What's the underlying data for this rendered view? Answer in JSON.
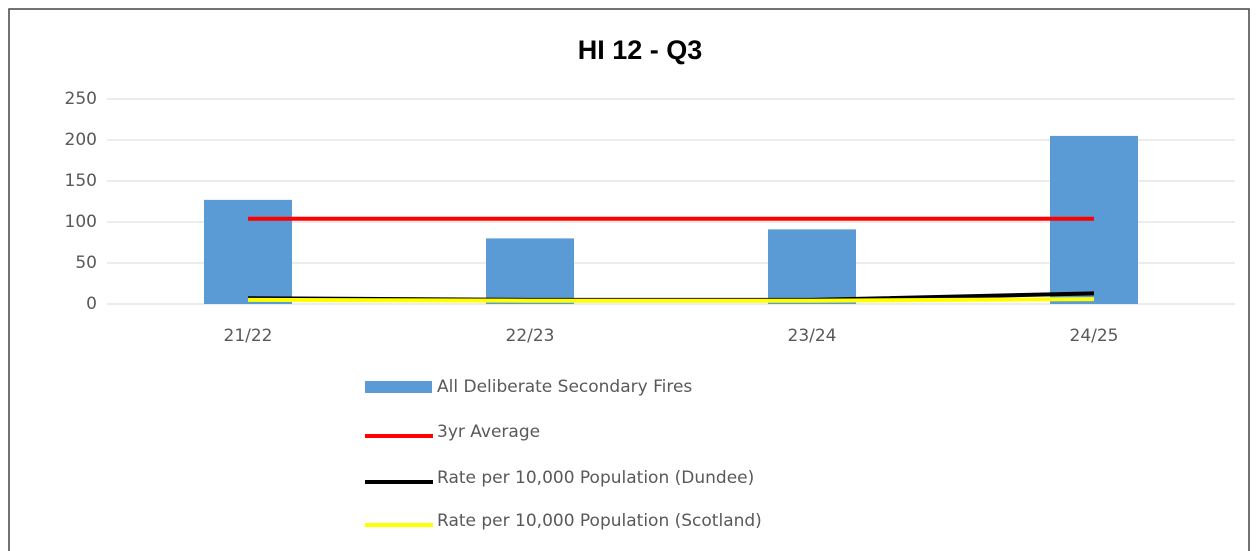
{
  "chart_data": {
    "type": "bar",
    "title": "HI 12 - Q3",
    "categories": [
      "21/22",
      "22/23",
      "23/24",
      "24/25"
    ],
    "series": [
      {
        "name": "All Deliberate Secondary Fires",
        "type": "bar",
        "color": "#5b9bd5",
        "values": [
          127,
          80,
          91,
          205
        ]
      },
      {
        "name": "3yr Average",
        "type": "line",
        "color": "#ff0000",
        "values": [
          104,
          104,
          104,
          104
        ]
      },
      {
        "name": "Rate per 10,000 Population (Dundee)",
        "type": "line",
        "color": "#000000",
        "values": [
          7,
          5,
          5,
          13
        ]
      },
      {
        "name": "Rate per 10,000 Population (Scotland)",
        "type": "line",
        "color": "#ffff00",
        "values": [
          5,
          4,
          4,
          6
        ]
      }
    ],
    "ylim": [
      0,
      250
    ],
    "yticks": [
      0,
      50,
      100,
      150,
      200,
      250
    ],
    "grid": true,
    "legend": "bottom"
  }
}
